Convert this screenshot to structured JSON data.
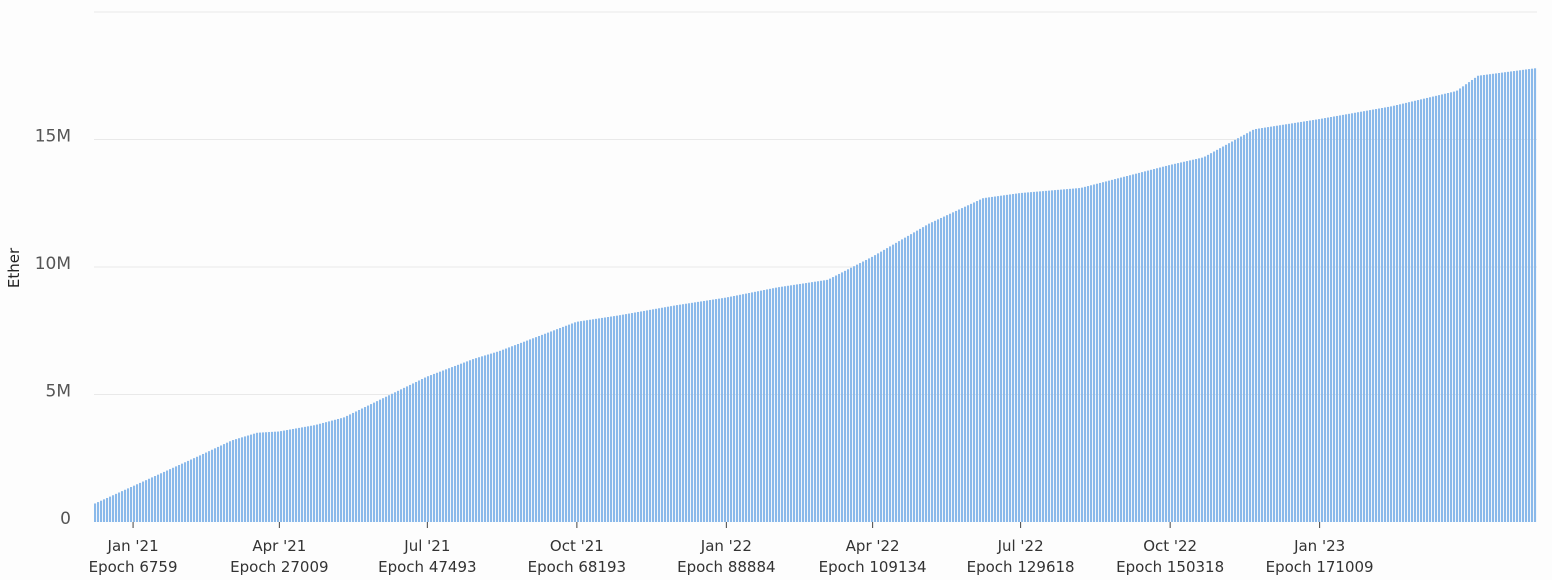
{
  "chart_data": {
    "type": "bar",
    "title": "",
    "ylabel": "Ether",
    "xlabel": "",
    "ylim": [
      0,
      20000000
    ],
    "grid": true,
    "legend": "none",
    "bar_color": "#8ab9ea",
    "y_ticks": [
      {
        "value": 0,
        "label": "0"
      },
      {
        "value": 5000000,
        "label": "5M"
      },
      {
        "value": 10000000,
        "label": "10M"
      },
      {
        "value": 15000000,
        "label": "15M"
      }
    ],
    "x_ticks": [
      {
        "epoch": 6759,
        "month": "Jan '21",
        "label": "Epoch 6759"
      },
      {
        "epoch": 27009,
        "month": "Apr '21",
        "label": "Epoch 27009"
      },
      {
        "epoch": 47493,
        "month": "Jul '21",
        "label": "Epoch 47493"
      },
      {
        "epoch": 68193,
        "month": "Oct '21",
        "label": "Epoch 68193"
      },
      {
        "epoch": 88884,
        "month": "Jan '22",
        "label": "Epoch 88884"
      },
      {
        "epoch": 109134,
        "month": "Apr '22",
        "label": "Epoch 109134"
      },
      {
        "epoch": 129618,
        "month": "Jul '22",
        "label": "Epoch 129618"
      },
      {
        "epoch": 150318,
        "month": "Oct '22",
        "label": "Epoch 150318"
      },
      {
        "epoch": 171009,
        "month": "Jan '23",
        "label": "Epoch 171009"
      }
    ],
    "x_range": [
      1350,
      201100
    ],
    "series": [
      {
        "x": [
          1350,
          6759,
          16000,
          20500,
          24000,
          27009,
          32000,
          36000,
          47493,
          54000,
          57500,
          68193,
          74000,
          82000,
          88884,
          96000,
          103000,
          109134,
          117000,
          124500,
          129618,
          138000,
          150318,
          155000,
          162000,
          171009,
          181000,
          190000,
          193000,
          201100
        ],
        "values": [
          700000,
          1400000,
          2600000,
          3200000,
          3500000,
          3550000,
          3800000,
          4100000,
          5700000,
          6400000,
          6700000,
          7850000,
          8100000,
          8500000,
          8800000,
          9200000,
          9500000,
          10400000,
          11700000,
          12700000,
          12900000,
          13100000,
          14000000,
          14300000,
          15400000,
          15800000,
          16300000,
          16900000,
          17500000,
          17800000
        ]
      }
    ]
  }
}
